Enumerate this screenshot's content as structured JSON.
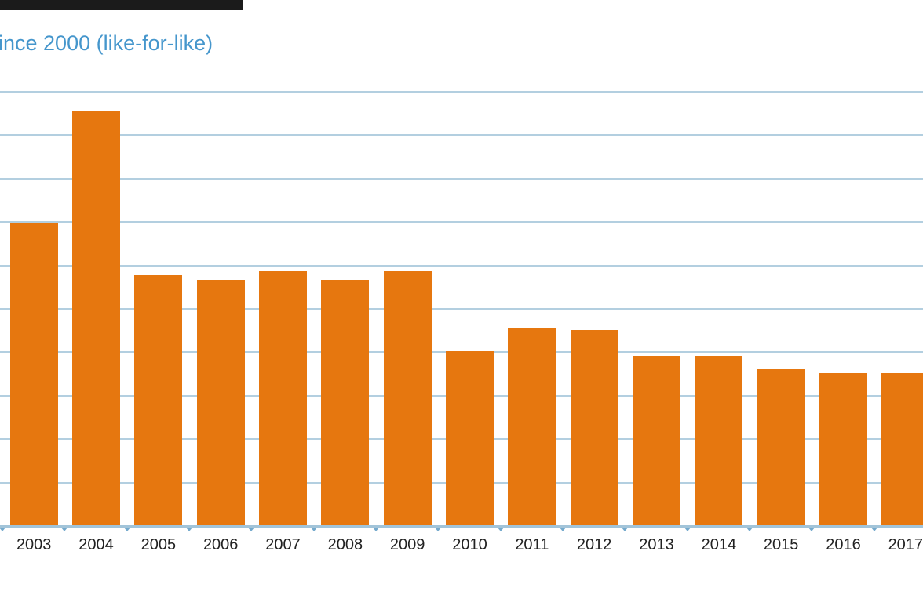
{
  "subtitle": "ince 2000 (like-for-like)",
  "chart_data": {
    "type": "bar",
    "title": "ince 2000 (like-for-like)",
    "title_note": "subtitle is cropped at the left edge of the screenshot; a dark heading line above it is cropped to its bottom sliver",
    "categories": [
      "2003",
      "2004",
      "2005",
      "2006",
      "2007",
      "2008",
      "2009",
      "2010",
      "2011",
      "2012",
      "2013",
      "2014",
      "2015",
      "2016",
      "2017"
    ],
    "values": [
      6.95,
      9.55,
      5.75,
      5.65,
      5.85,
      5.65,
      5.85,
      4.0,
      4.55,
      4.5,
      3.9,
      3.9,
      3.6,
      3.5,
      3.5
    ],
    "xlabel": "",
    "ylabel": "",
    "ylim": [
      0,
      10
    ],
    "gridline_step": 1,
    "grid": true,
    "y_axis_labels_visible": false,
    "legend": "none",
    "series_name": "",
    "last_bar_cropped_right": true
  },
  "colors": {
    "bar": "#e6770f",
    "gridline": "#b3cfe0",
    "axis_line": "#a2c4d9",
    "tick": "#75aacd",
    "x_labels": "#222222",
    "subtitle": "#4596cc",
    "cropped_heading": "#1b1b1b",
    "background": "#ffffff"
  }
}
